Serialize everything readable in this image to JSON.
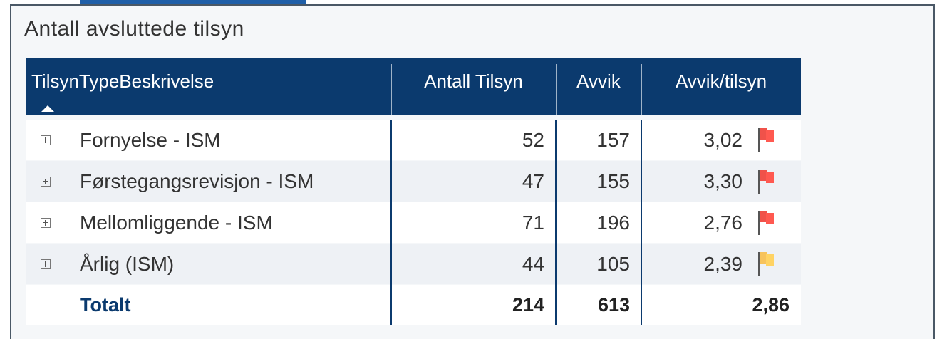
{
  "title": "Antall avsluttede tilsyn",
  "table": {
    "header": [
      "TilsynTypeBeskrivelse",
      "Antall Tilsyn",
      "Avvik",
      "Avvik/tilsyn"
    ],
    "rows": [
      [
        "Fornyelse - ISM",
        "52",
        "157",
        "3,02"
      ],
      [
        "Førstegangsrevisjon - ISM",
        "47",
        "155",
        "3,30"
      ],
      [
        "Mellomliggende - ISM",
        "71",
        "196",
        "2,76"
      ],
      [
        "Årlig (ISM)",
        "44",
        "105",
        "2,39"
      ]
    ],
    "flag_colors": [
      "#f0524a",
      "#f0524a",
      "#f0524a",
      "#f7c35c"
    ],
    "total": [
      "Totalt",
      "214",
      "613",
      "2,86"
    ]
  }
}
